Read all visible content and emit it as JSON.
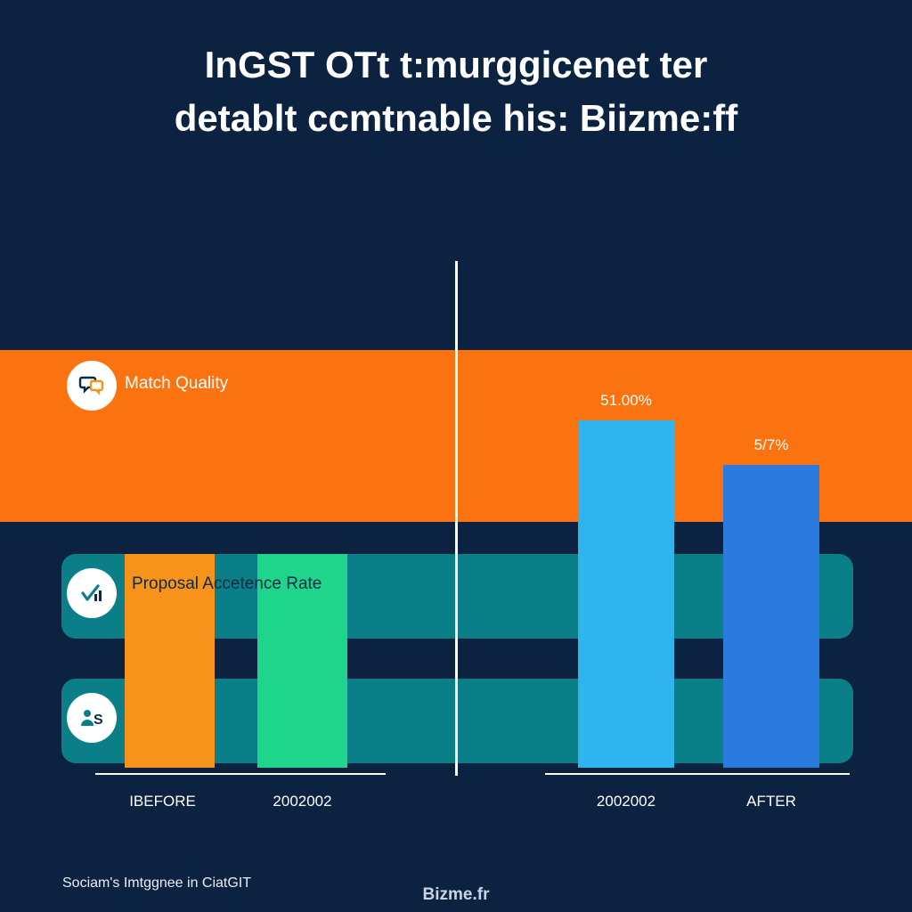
{
  "chart_data": {
    "type": "bar",
    "title_line1": "InGST OTt t:murggicenet ter",
    "title_line2": "detablt ccmtnable his: Biizme:ff",
    "rows": [
      {
        "label": "Match Quality",
        "icon": "speech-bubble-icon"
      },
      {
        "label": "Proposal Accetence Rate",
        "icon": "check-chart-icon"
      },
      {
        "label": "",
        "icon": "user-dollar-icon"
      }
    ],
    "categories": [
      "IBEFORE",
      "2002002",
      "2002002",
      "AFTER"
    ],
    "bars": [
      {
        "category": "IBEFORE",
        "color": "#f7931b"
      },
      {
        "category": "2002002",
        "color": "#1fd48b"
      },
      {
        "category": "2002002",
        "value_label": "51.00%",
        "color": "#2fb4ee"
      },
      {
        "category": "AFTER",
        "value_label": "5/7%",
        "color": "#2b7bdf"
      }
    ],
    "colors": {
      "background": "#0b2240",
      "band_orange": "#fb7310",
      "band_teal": "#0b7f87"
    }
  },
  "footer": {
    "credit": "Sociam's Imtggnee in CiatGIT",
    "brand": "Bizme.fr"
  }
}
